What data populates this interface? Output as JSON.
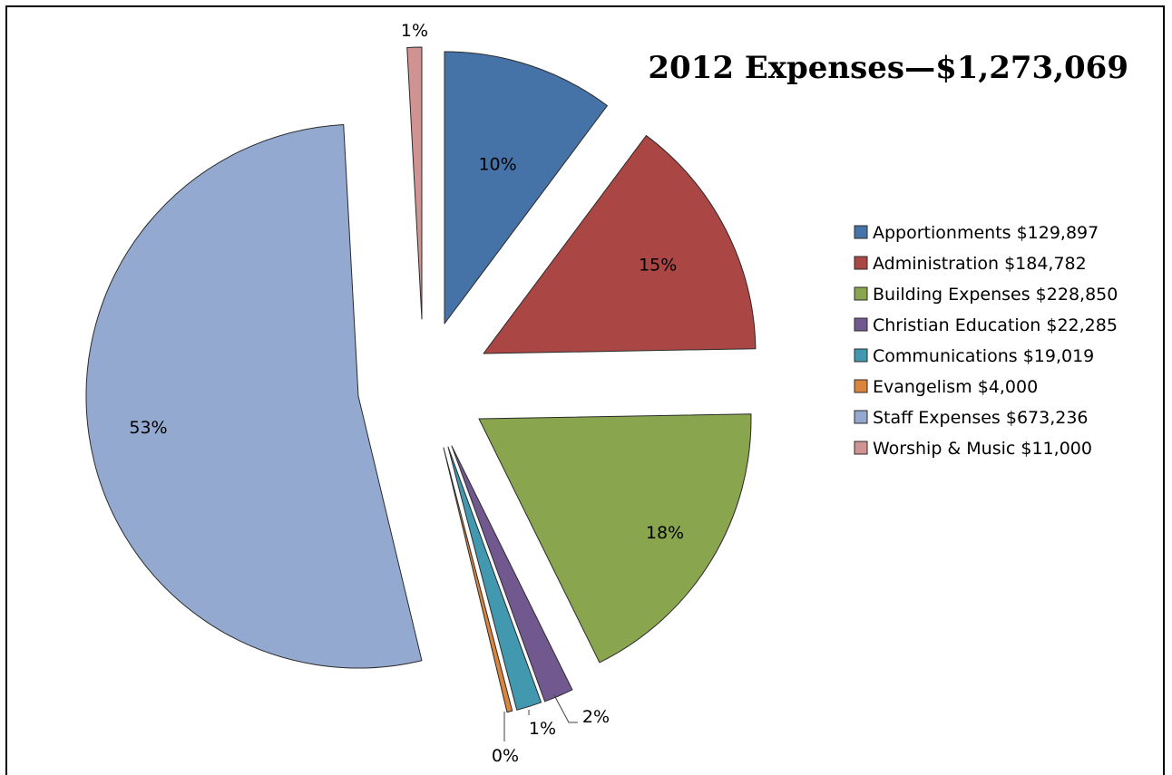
{
  "chart_data": {
    "type": "pie",
    "title": "2012 Expenses—$1,273,069",
    "legend_position": "right",
    "exploded": true,
    "slices": [
      {
        "name": "Apportionments $129,897",
        "value": 129897,
        "label": "10%",
        "color": "#4572a7"
      },
      {
        "name": "Administration $184,782",
        "value": 184782,
        "label": "15%",
        "color": "#aa4643"
      },
      {
        "name": "Building Expenses $228,850",
        "value": 228850,
        "label": "18%",
        "color": "#89a54e"
      },
      {
        "name": "Christian Education $22,285",
        "value": 22285,
        "label": "2%",
        "color": "#71588f"
      },
      {
        "name": "Communications $19,019",
        "value": 19019,
        "label": "1%",
        "color": "#4198af"
      },
      {
        "name": "Evangelism $4,000",
        "value": 4000,
        "label": "0%",
        "color": "#db843d"
      },
      {
        "name": "Staff Expenses $673,236",
        "value": 673236,
        "label": "53%",
        "color": "#93a9cf"
      },
      {
        "name": "Worship & Music $11,000",
        "value": 11000,
        "label": "1%",
        "color": "#d19392"
      }
    ]
  }
}
